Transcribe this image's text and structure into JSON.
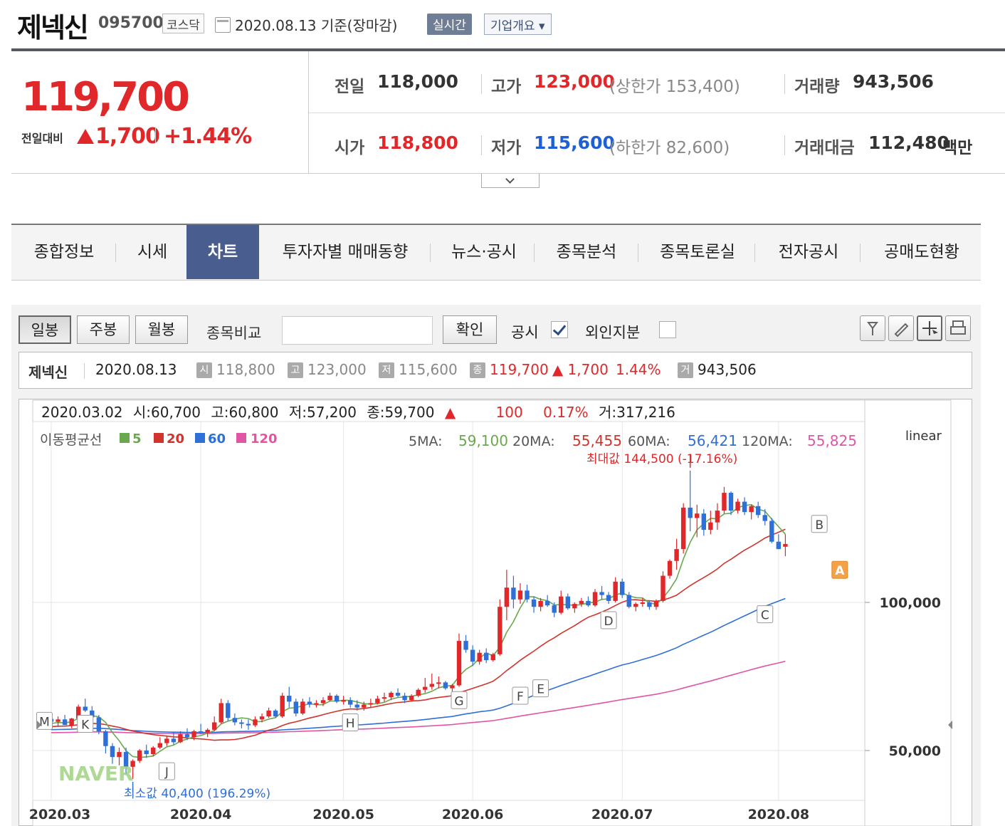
{
  "header": {
    "name": "제넥신",
    "code": "095700",
    "market": "코스닥",
    "date": "2020.08.13 기준(장마감)",
    "realtime_label": "실시간",
    "overview_label": "기업개요 ▾"
  },
  "quote": {
    "price": "119,700",
    "change_label": "전일대비",
    "change": "1,700",
    "change_pct": "+1.44%",
    "prev_label": "전일",
    "prev": "118,000",
    "high_label": "고가",
    "high": "123,000",
    "upper_limit": "(상한가 153,400)",
    "volume_label": "거래량",
    "volume": "943,506",
    "open_label": "시가",
    "open": "118,800",
    "low_label": "저가",
    "low": "115,600",
    "lower_limit": "(하한가 82,600)",
    "amount_label": "거래대금",
    "amount": "112,480",
    "amount_unit": "백만"
  },
  "tabs": [
    "종합정보",
    "시세",
    "차트",
    "투자자별 매매동향",
    "뉴스·공시",
    "종목분석",
    "종목토론실",
    "전자공시",
    "공매도현황"
  ],
  "active_tab": "차트",
  "controls": {
    "daily": "일봉",
    "weekly": "주봉",
    "monthly": "월봉",
    "compare_label": "종목비교",
    "compare_value": "",
    "confirm": "확인",
    "disclosure_label": "공시",
    "foreign_label": "외인지분"
  },
  "infobar": {
    "name": "제넥신",
    "date": "2020.08.13",
    "open_badge": "시",
    "open": "118,800",
    "high_badge": "고",
    "high": "123,000",
    "low_badge": "저",
    "low": "115,600",
    "close_badge": "종",
    "close": "119,700",
    "change": "▲ 1,700",
    "pct": "1.44%",
    "vol_badge": "거",
    "volume": "943,506"
  },
  "chart_data": {
    "type": "candlestick",
    "hover_info": {
      "date": "2020.03.02",
      "open_label": "시:",
      "open": "60,700",
      "high_label": "고:",
      "high": "60,800",
      "low_label": "저:",
      "low": "57,200",
      "close_label": "종:",
      "close": "59,700",
      "arrow": "▲",
      "change": "100",
      "pct": "0.17%",
      "volume_label": "거:",
      "volume": "317,216"
    },
    "ma_legend": {
      "title": "이동평균선",
      "items": [
        {
          "name": "5",
          "color": "#6aa84f"
        },
        {
          "name": "20",
          "color": "#d0342c"
        },
        {
          "name": "60",
          "color": "#2f6fd8"
        },
        {
          "name": "120",
          "color": "#e055a4"
        }
      ]
    },
    "ma_values": [
      {
        "label": "5MA:",
        "value": "59,100",
        "color": "#6aa84f"
      },
      {
        "label": "20MA:",
        "value": "55,455",
        "color": "#d0342c"
      },
      {
        "label": "60MA:",
        "value": "56,421",
        "color": "#2f6fd8"
      },
      {
        "label": "120MA:",
        "value": "55,825",
        "color": "#e055a4"
      }
    ],
    "scale": "linear",
    "y_ticks": [
      {
        "value": 100000,
        "label": "100,000"
      },
      {
        "value": 50000,
        "label": "50,000"
      }
    ],
    "x_ticks": [
      {
        "day": 0,
        "label": "2020.03"
      },
      {
        "day": 22,
        "label": "2020.04"
      },
      {
        "day": 43,
        "label": "2020.05"
      },
      {
        "day": 62,
        "label": "2020.06"
      },
      {
        "day": 84,
        "label": "2020.07"
      },
      {
        "day": 107,
        "label": "2020.08"
      }
    ],
    "annotations": {
      "max": "최대값 144,500 (-17.16%)",
      "min": "최소값 40,400 (196.29%)"
    },
    "watermark": "NAVER",
    "candles": [
      [
        60700,
        60800,
        57200,
        59700
      ],
      [
        59700,
        61500,
        58000,
        60500
      ],
      [
        60500,
        62000,
        59000,
        58600
      ],
      [
        58500,
        61000,
        57500,
        60800
      ],
      [
        60800,
        65500,
        60200,
        64800
      ],
      [
        64800,
        67500,
        63000,
        63500
      ],
      [
        63500,
        65000,
        60500,
        61200
      ],
      [
        61200,
        62000,
        55500,
        56500
      ],
      [
        56500,
        57000,
        49000,
        51500
      ],
      [
        51500,
        52500,
        45500,
        47800
      ],
      [
        47800,
        51000,
        45000,
        49500
      ],
      [
        49500,
        51000,
        42000,
        44500
      ],
      [
        44500,
        47000,
        40400,
        46500
      ],
      [
        46500,
        50500,
        45800,
        50000
      ],
      [
        50000,
        52000,
        47500,
        48800
      ],
      [
        48800,
        51500,
        48000,
        51000
      ],
      [
        51000,
        54500,
        50500,
        52500
      ],
      [
        52500,
        55000,
        51500,
        54000
      ],
      [
        54000,
        56000,
        52000,
        52800
      ],
      [
        52800,
        56500,
        52500,
        55500
      ],
      [
        55500,
        57500,
        53500,
        54500
      ],
      [
        54500,
        57000,
        53500,
        56500
      ],
      [
        56500,
        59000,
        55500,
        56000
      ],
      [
        56000,
        57500,
        54500,
        57000
      ],
      [
        57000,
        61500,
        56500,
        59500
      ],
      [
        59500,
        67500,
        59000,
        66000
      ],
      [
        66000,
        67000,
        60000,
        61000
      ],
      [
        61000,
        62500,
        58500,
        59500
      ],
      [
        59500,
        60500,
        57500,
        59000
      ],
      [
        59000,
        60500,
        57000,
        58500
      ],
      [
        58500,
        61500,
        58000,
        60500
      ],
      [
        60500,
        62500,
        59500,
        61500
      ],
      [
        61500,
        64500,
        61000,
        63500
      ],
      [
        63500,
        64000,
        61000,
        61500
      ],
      [
        61500,
        69500,
        61000,
        68500
      ],
      [
        68500,
        71500,
        64500,
        66500
      ],
      [
        66500,
        67500,
        61500,
        62500
      ],
      [
        62500,
        67500,
        62000,
        66500
      ],
      [
        66500,
        68000,
        64500,
        65500
      ],
      [
        65500,
        67000,
        64500,
        66000
      ],
      [
        66000,
        68000,
        65000,
        67000
      ],
      [
        67000,
        69500,
        66500,
        68500
      ],
      [
        68500,
        69000,
        66000,
        66500
      ],
      [
        66500,
        68500,
        65500,
        67000
      ],
      [
        67000,
        68000,
        64500,
        65500
      ],
      [
        65500,
        67000,
        63500,
        64500
      ],
      [
        64500,
        66500,
        63500,
        65500
      ],
      [
        65500,
        67500,
        64500,
        66000
      ],
      [
        66000,
        68500,
        65500,
        67500
      ],
      [
        67500,
        69500,
        66500,
        68000
      ],
      [
        68000,
        70000,
        67000,
        69500
      ],
      [
        69500,
        71000,
        68000,
        68500
      ],
      [
        68500,
        69500,
        66000,
        67000
      ],
      [
        67000,
        69000,
        66500,
        68500
      ],
      [
        68500,
        71000,
        68000,
        70500
      ],
      [
        70500,
        74500,
        69500,
        71500
      ],
      [
        71500,
        76000,
        70500,
        72500
      ],
      [
        72500,
        75000,
        71000,
        73000
      ],
      [
        73000,
        73500,
        70500,
        71000
      ],
      [
        71000,
        72500,
        69500,
        72000
      ],
      [
        72000,
        89500,
        71500,
        87000
      ],
      [
        87000,
        89000,
        83000,
        84000
      ],
      [
        84000,
        85500,
        78500,
        80000
      ],
      [
        80000,
        84000,
        79000,
        83000
      ],
      [
        83000,
        84500,
        79500,
        80500
      ],
      [
        80500,
        83000,
        80000,
        82500
      ],
      [
        82500,
        101000,
        82000,
        98500
      ],
      [
        98500,
        111000,
        94000,
        105000
      ],
      [
        105000,
        109000,
        98000,
        101000
      ],
      [
        101000,
        106500,
        99500,
        104000
      ],
      [
        104000,
        106000,
        100000,
        101000
      ],
      [
        101000,
        102000,
        96500,
        98500
      ],
      [
        98500,
        101500,
        97000,
        100500
      ],
      [
        100500,
        102500,
        98500,
        99000
      ],
      [
        99000,
        100000,
        95000,
        96500
      ],
      [
        96500,
        104000,
        96000,
        102000
      ],
      [
        102000,
        103000,
        97500,
        98000
      ],
      [
        98000,
        100000,
        96500,
        99500
      ],
      [
        99500,
        101500,
        98500,
        100500
      ],
      [
        100500,
        102000,
        98500,
        99000
      ],
      [
        99000,
        104500,
        98500,
        103500
      ],
      [
        103500,
        105500,
        101000,
        102500
      ],
      [
        102500,
        103500,
        99500,
        100500
      ],
      [
        100500,
        108500,
        100000,
        107000
      ],
      [
        107000,
        108000,
        101500,
        102500
      ],
      [
        102500,
        103500,
        98000,
        98500
      ],
      [
        98500,
        100000,
        97000,
        99500
      ],
      [
        99500,
        101500,
        98500,
        100000
      ],
      [
        100000,
        100500,
        97500,
        98500
      ],
      [
        98500,
        101000,
        97500,
        100500
      ],
      [
        100500,
        110500,
        100000,
        109000
      ],
      [
        109000,
        114500,
        108000,
        114000
      ],
      [
        114000,
        121500,
        111000,
        118000
      ],
      [
        118000,
        133500,
        116500,
        132000
      ],
      [
        132000,
        144500,
        124000,
        128500
      ],
      [
        128500,
        133000,
        122000,
        130000
      ],
      [
        130000,
        131500,
        122500,
        124500
      ],
      [
        124500,
        131000,
        123000,
        127000
      ],
      [
        127000,
        133500,
        124500,
        131000
      ],
      [
        131000,
        139000,
        130000,
        137000
      ],
      [
        137000,
        137500,
        129500,
        131000
      ],
      [
        131000,
        135000,
        130000,
        134000
      ],
      [
        134000,
        135500,
        129500,
        130500
      ],
      [
        130500,
        133000,
        128000,
        132500
      ],
      [
        132500,
        134000,
        128500,
        129500
      ],
      [
        129500,
        131500,
        126000,
        127500
      ],
      [
        127500,
        128500,
        120000,
        120500
      ],
      [
        120500,
        123000,
        118000,
        118000
      ],
      [
        118800,
        123000,
        115600,
        119700
      ]
    ]
  }
}
